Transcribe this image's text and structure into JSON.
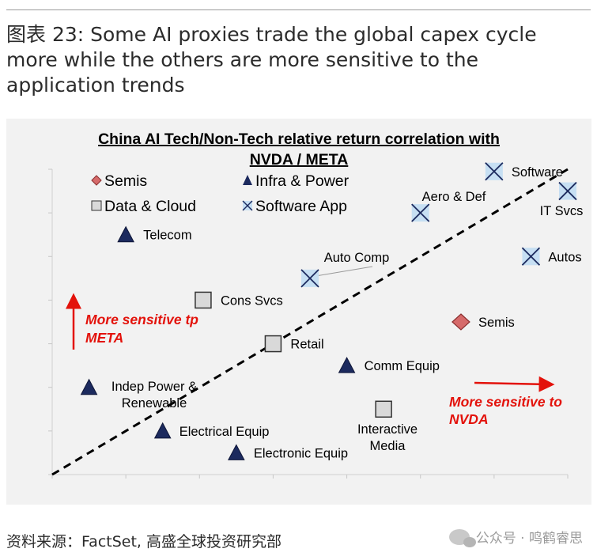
{
  "figure": {
    "title": "图表 23: Some AI proxies trade the global capex cycle more while the others are more sensitive to the application trends",
    "source": "资料来源：FactSet, 高盛全球投资研究部",
    "watermark": "公众号 · 鸣鹤睿思"
  },
  "chart_data": {
    "type": "scatter",
    "title": "China AI Tech/Non-Tech relative return correlation with",
    "title_line2": "NVDA / META",
    "xlabel": "",
    "ylabel": "",
    "xlim": [
      0,
      7
    ],
    "ylim": [
      0,
      7
    ],
    "grid": false,
    "legend_placement": "top-left",
    "series": [
      {
        "name": "Semis",
        "marker": "diamond",
        "color": "#d66a6a",
        "points": [
          {
            "label": "Semis",
            "x": 5.55,
            "y": 3.5
          }
        ]
      },
      {
        "name": "Infra & Power",
        "marker": "triangle",
        "color": "#1c2a5e",
        "points": [
          {
            "label": "Telecom",
            "x": 1.0,
            "y": 5.5
          },
          {
            "label": "Indep Power & Renewable",
            "x": 0.5,
            "y": 2.0
          },
          {
            "label": "Electrical Equip",
            "x": 1.5,
            "y": 1.0
          },
          {
            "label": "Electronic Equip",
            "x": 2.5,
            "y": 0.5
          },
          {
            "label": "Comm Equip",
            "x": 4.0,
            "y": 2.5
          }
        ]
      },
      {
        "name": "Data & Cloud",
        "marker": "square",
        "color": "#d9d9d9",
        "points": [
          {
            "label": "Cons Svcs",
            "x": 2.05,
            "y": 4.0
          },
          {
            "label": "Retail",
            "x": 3.0,
            "y": 3.0
          },
          {
            "label": "Interactive Media",
            "x": 4.5,
            "y": 1.5
          }
        ]
      },
      {
        "name": "Software App",
        "marker": "xbox",
        "color": "#c6dff3",
        "points": [
          {
            "label": "Auto Comp",
            "x": 3.5,
            "y": 4.5
          },
          {
            "label": "Aero & Def",
            "x": 5.0,
            "y": 6.0
          },
          {
            "label": "Software",
            "x": 6.0,
            "y": 6.95
          },
          {
            "label": "IT Svcs",
            "x": 7.0,
            "y": 6.5
          },
          {
            "label": "Autos",
            "x": 6.5,
            "y": 5.0
          }
        ]
      }
    ],
    "annotations": {
      "meta": "More sensitive tp META",
      "meta_line1": "More sensitive tp",
      "meta_line2": "META",
      "nvda_line1": "More sensitive to",
      "nvda_line2": "NVDA",
      "accent": "#e3120b"
    }
  }
}
